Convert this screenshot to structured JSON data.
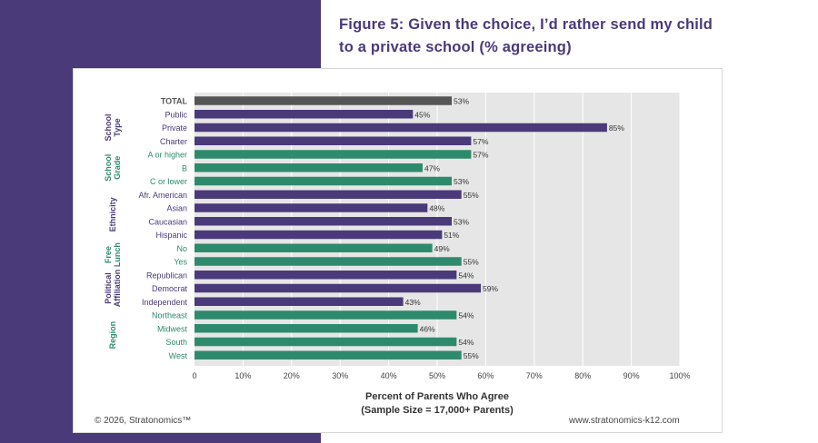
{
  "title": "Figure 5: Given the choice, I’d rather send my child to a private school (% agreeing)",
  "footer": {
    "copyright": "© 2026, Stratonomics™",
    "website": "www.stratonomics-k12.com"
  },
  "colors": {
    "total": "#555555",
    "purple": "#4a3a7a",
    "teal": "#2e8a6c",
    "plot_bg": "#e6e6e6",
    "page_accent": "#4a3a7a"
  },
  "chart_data": {
    "type": "bar",
    "orientation": "horizontal",
    "title": "Figure 5: Given the choice, I’d rather send my child to a private school (% agreeing)",
    "xlabel": "Percent of Parents Who Agree",
    "xlabel_sub": "(Sample Size = 17,000+ Parents)",
    "xlim": [
      0,
      100
    ],
    "xticks": [
      "0",
      "10%",
      "20%",
      "30%",
      "40%",
      "50%",
      "60%",
      "70%",
      "80%",
      "90%",
      "100%"
    ],
    "groups": [
      {
        "name": "",
        "label_lines": [],
        "color_key": "total",
        "items": [
          {
            "label": "TOTAL",
            "value": 53,
            "bold": true
          }
        ]
      },
      {
        "name": "School Type",
        "label_lines": [
          "School",
          "Type"
        ],
        "color_key": "purple",
        "items": [
          {
            "label": "Public",
            "value": 45
          },
          {
            "label": "Private",
            "value": 85
          },
          {
            "label": "Charter",
            "value": 57
          }
        ]
      },
      {
        "name": "School Grade",
        "label_lines": [
          "School",
          "Grade"
        ],
        "color_key": "teal",
        "items": [
          {
            "label": "A or higher",
            "value": 57
          },
          {
            "label": "B",
            "value": 47
          },
          {
            "label": "C or lower",
            "value": 53
          }
        ]
      },
      {
        "name": "Ethnicity",
        "label_lines": [
          "Ethnicity"
        ],
        "color_key": "purple",
        "items": [
          {
            "label": "Afr. American",
            "value": 55
          },
          {
            "label": "Asian",
            "value": 48
          },
          {
            "label": "Caucasian",
            "value": 53
          },
          {
            "label": "Hispanic",
            "value": 51
          }
        ]
      },
      {
        "name": "Free Lunch",
        "label_lines": [
          "Free",
          "Lunch"
        ],
        "color_key": "teal",
        "items": [
          {
            "label": "No",
            "value": 49
          },
          {
            "label": "Yes",
            "value": 55
          }
        ]
      },
      {
        "name": "Political Affiliation",
        "label_lines": [
          "Political",
          "Affiliation"
        ],
        "color_key": "purple",
        "items": [
          {
            "label": "Republican",
            "value": 54
          },
          {
            "label": "Democrat",
            "value": 59
          },
          {
            "label": "Independent",
            "value": 43
          }
        ]
      },
      {
        "name": "Region",
        "label_lines": [
          "Region"
        ],
        "color_key": "teal",
        "items": [
          {
            "label": "Northeast",
            "value": 54
          },
          {
            "label": "Midwest",
            "value": 46
          },
          {
            "label": "South",
            "value": 54
          },
          {
            "label": "West",
            "value": 55
          }
        ]
      }
    ]
  }
}
